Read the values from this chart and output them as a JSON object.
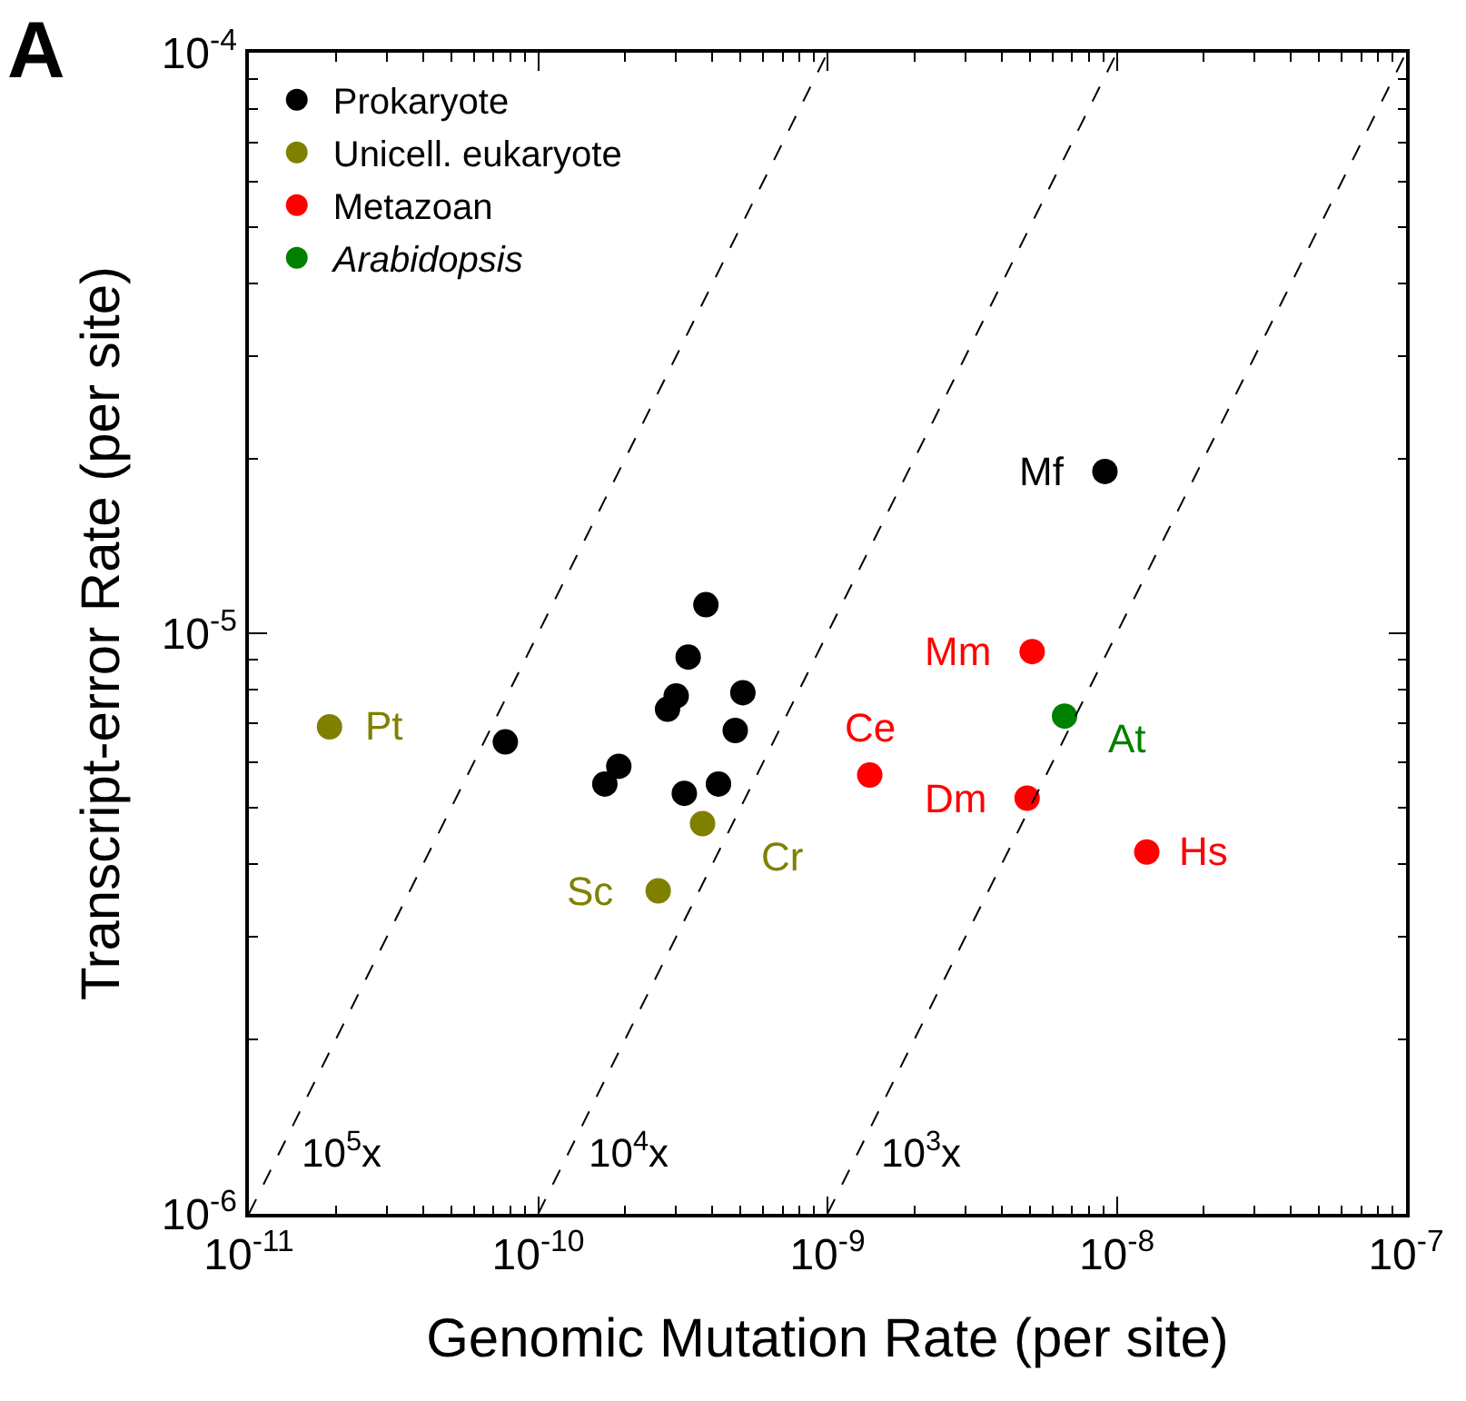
{
  "chart_data": {
    "type": "scatter",
    "title": "A",
    "xlabel": "Genomic Mutation Rate (per site)",
    "ylabel": "Transcript-error Rate (per site)",
    "log": "xy",
    "grid": false,
    "legend": "top left",
    "marker": "circle",
    "xlim": [
      1e-11,
      1e-07
    ],
    "ylim": [
      1e-06,
      0.0001
    ],
    "xticks": [
      {
        "value": 1e-11,
        "label": "10$^{-11}$"
      },
      {
        "value": 1e-10,
        "label": "10$^{-10}$"
      },
      {
        "value": 1e-09,
        "label": "10$^{-9}$"
      },
      {
        "value": 1e-08,
        "label": "10$^{-8}$"
      },
      {
        "value": 1e-07,
        "label": "10$^{-7}$"
      }
    ],
    "yticks": [
      {
        "value": 1e-06,
        "label": "10$^{-6}$"
      },
      {
        "value": 1e-05,
        "label": "10$^{-5}$"
      },
      {
        "value": 0.0001,
        "label": "10$^{-4}$"
      }
    ],
    "series": [
      {
        "name": "Prokaryote",
        "color": "#000000",
        "x": [
          7.7e-11,
          1.7e-10,
          1.9e-10,
          2.8e-10,
          3e-10,
          3.3e-10,
          3.8e-10,
          3.2e-10,
          4.2e-10,
          4.8e-10,
          5.1e-10,
          9.1e-09
        ],
        "values": [
          6.5e-06,
          5.5e-06,
          5.9e-06,
          7.4e-06,
          7.8e-06,
          9.1e-06,
          1.12e-05,
          5.3e-06,
          5.5e-06,
          6.8e-06,
          7.9e-06,
          1.9e-05
        ]
      },
      {
        "name": "Unicell. eukaryote",
        "color": "#808000",
        "x": [
          1.9e-11,
          2.6e-10,
          3.7e-10
        ],
        "values": [
          6.9e-06,
          3.6e-06,
          4.7e-06
        ]
      },
      {
        "name": "Metazoan",
        "color": "#ff0000",
        "x": [
          5.1e-09,
          1.4e-09,
          4.9e-09,
          1.27e-08
        ],
        "values": [
          9.3e-06,
          5.7e-06,
          5.2e-06,
          4.2e-06
        ]
      },
      {
        "name": "Arabidopsis",
        "color": "#008000",
        "x": [
          6.6e-09
        ],
        "values": [
          7.2e-06
        ]
      },
      {
        "type": "line",
        "color": "#000000",
        "line_style": "dashed",
        "marker": "none",
        "x": [
          1e-11,
          1e-09
        ],
        "values": [
          1e-06,
          0.0001
        ]
      },
      {
        "type": "line",
        "color": "#000000",
        "line_style": "dashed",
        "marker": "none",
        "x": [
          1e-10,
          1e-08
        ],
        "values": [
          1e-06,
          0.0001
        ]
      },
      {
        "type": "line",
        "color": "#000000",
        "line_style": "dashed",
        "marker": "none",
        "x": [
          1e-09,
          1e-07
        ],
        "values": [
          1e-06,
          0.0001
        ]
      }
    ],
    "annotations": [
      {
        "text": "Pt",
        "x": 1.9e-11,
        "y": 6.9e-06
      },
      {
        "text": "Sc",
        "x": 2.6e-10,
        "y": 3.6e-06
      },
      {
        "text": "Cr",
        "x": 3.7e-10,
        "y": 4.7e-06
      },
      {
        "text": "Mf",
        "x": 9.1e-09,
        "y": 1.9e-05
      },
      {
        "text": "Mm",
        "x": 5.1e-09,
        "y": 9.3e-06
      },
      {
        "text": "Ce",
        "x": 1.4e-09,
        "y": 5.7e-06
      },
      {
        "text": "Dm",
        "x": 4.9e-09,
        "y": 5.2e-06
      },
      {
        "text": "At",
        "x": 6.6e-09,
        "y": 7.2e-06
      },
      {
        "text": "Hs",
        "x": 1.27e-08,
        "y": 4.2e-06
      },
      "10$^{5}$x",
      "10$^{4}$x",
      "10$^{3}$x"
    ]
  }
}
